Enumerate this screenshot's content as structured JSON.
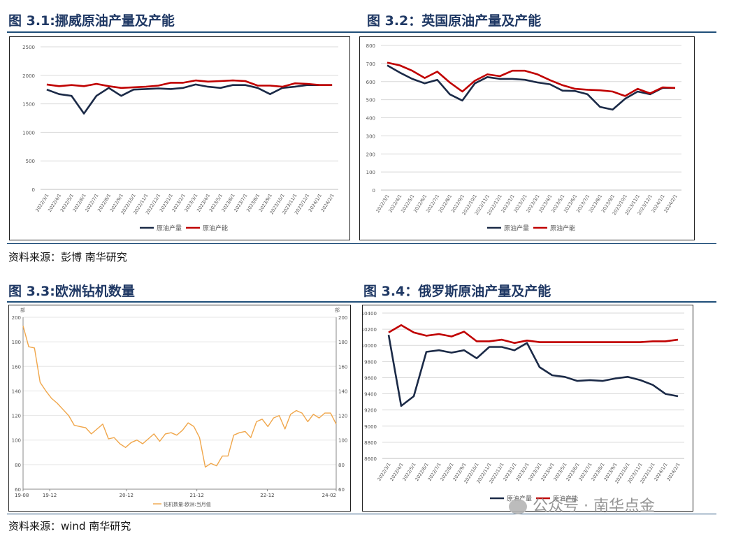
{
  "sections": {
    "s1": {
      "title": "图 3.1:挪威原油产量及产能"
    },
    "s2": {
      "title": "图 3.2：英国原油产量及产能"
    },
    "s3": {
      "title": "图 3.3:欧洲钻机数量"
    },
    "s4": {
      "title": "图 3.4：俄罗斯原油产量及产能"
    }
  },
  "source_top": "资料来源：彭博 南华研究",
  "source_bottom": "资料来源：wind 南华研究",
  "watermark": "公众号 · 南华点金",
  "colors": {
    "navy": "#1b2a47",
    "red": "#c00000",
    "orange": "#f0a64a",
    "rule": "#1f4e79"
  },
  "chart_data": [
    {
      "id": "norway",
      "type": "line",
      "title": "",
      "categories": [
        "2022/3/1",
        "2022/4/1",
        "2022/5/1",
        "2022/6/1",
        "2022/7/1",
        "2022/8/1",
        "2022/9/1",
        "2022/10/1",
        "2022/11/1",
        "2022/12/1",
        "2023/1/1",
        "2023/2/1",
        "2023/3/1",
        "2023/4/1",
        "2023/5/1",
        "2023/6/1",
        "2023/7/1",
        "2023/8/1",
        "2023/9/1",
        "2023/10/1",
        "2023/11/1",
        "2023/12/1",
        "2024/1/1",
        "2024/2/1"
      ],
      "series": [
        {
          "name": "原油产量",
          "color": "#1b2a47",
          "values": [
            1750,
            1670,
            1640,
            1330,
            1640,
            1780,
            1640,
            1750,
            1760,
            1770,
            1760,
            1780,
            1840,
            1800,
            1780,
            1830,
            1830,
            1780,
            1670,
            1780,
            1800,
            1830,
            1830,
            1830
          ]
        },
        {
          "name": "原油产能",
          "color": "#c00000",
          "values": [
            1840,
            1810,
            1830,
            1810,
            1850,
            1810,
            1780,
            1790,
            1800,
            1820,
            1870,
            1870,
            1910,
            1890,
            1900,
            1910,
            1900,
            1820,
            1820,
            1800,
            1860,
            1850,
            1830,
            1830
          ]
        }
      ],
      "ylim": [
        0,
        2500
      ],
      "yticks": [
        0,
        500,
        1000,
        1500,
        2000,
        2500
      ],
      "legend": "bottom",
      "grid": true
    },
    {
      "id": "uk",
      "type": "line",
      "title": "",
      "categories": [
        "2022/3/1",
        "2022/4/1",
        "2022/5/1",
        "2022/6/1",
        "2022/7/1",
        "2022/8/1",
        "2022/9/1",
        "2022/10/1",
        "2022/11/1",
        "2022/12/1",
        "2023/1/1",
        "2023/2/1",
        "2023/3/1",
        "2023/4/1",
        "2023/5/1",
        "2023/6/1",
        "2023/7/1",
        "2023/8/1",
        "2023/9/1",
        "2023/10/1",
        "2023/11/1",
        "2023/12/1",
        "2024/1/1",
        "2024/2/1"
      ],
      "series": [
        {
          "name": "原油产量",
          "color": "#1b2a47",
          "values": [
            690,
            650,
            615,
            590,
            610,
            530,
            495,
            590,
            625,
            615,
            615,
            610,
            595,
            585,
            550,
            548,
            530,
            460,
            445,
            505,
            545,
            530,
            565,
            565
          ]
        },
        {
          "name": "原油产能",
          "color": "#c00000",
          "values": [
            705,
            690,
            660,
            620,
            655,
            595,
            545,
            605,
            640,
            630,
            660,
            660,
            640,
            608,
            580,
            560,
            555,
            552,
            545,
            520,
            560,
            535,
            568,
            565
          ]
        }
      ],
      "ylim": [
        0,
        800
      ],
      "yticks": [
        0,
        100,
        200,
        300,
        400,
        500,
        600,
        700,
        800
      ],
      "legend": "bottom",
      "grid": true
    },
    {
      "id": "europe_rigs",
      "type": "line",
      "title": "",
      "unit_label": "部",
      "xticks": [
        "19-08",
        "19-12",
        "20-12",
        "21-12",
        "22-12",
        "24-02"
      ],
      "series": [
        {
          "name": "钻机数量:欧洲:当月值",
          "color": "#f0a64a",
          "values": [
            193,
            176,
            175,
            147,
            140,
            134,
            130,
            125,
            120,
            112,
            111,
            110,
            105,
            109,
            113,
            101,
            102,
            97,
            94,
            98,
            100,
            97,
            101,
            105,
            99,
            105,
            106,
            104,
            108,
            114,
            111,
            102,
            78,
            81,
            79,
            87,
            87,
            104,
            106,
            107,
            102,
            115,
            117,
            111,
            118,
            120,
            109,
            121,
            124,
            122,
            115,
            121,
            118,
            122,
            122,
            113
          ]
        }
      ],
      "ylim": [
        60,
        200
      ],
      "yticks": [
        60,
        80,
        100,
        120,
        140,
        160,
        180,
        200
      ],
      "legend": "bottom",
      "grid": true
    },
    {
      "id": "russia",
      "type": "line",
      "title": "",
      "categories": [
        "2022/3/1",
        "2022/4/1",
        "2022/5/1",
        "2022/6/1",
        "2022/7/1",
        "2022/8/1",
        "2022/9/1",
        "2022/10/1",
        "2022/11/1",
        "2022/12/1",
        "2023/1/1",
        "2023/2/1",
        "2023/3/1",
        "2023/4/1",
        "2023/5/1",
        "2023/6/1",
        "2023/7/1",
        "2023/8/1",
        "2023/9/1",
        "2023/10/1",
        "2023/11/1",
        "2023/12/1",
        "2024/1/1",
        "2024/2/1"
      ],
      "series": [
        {
          "name": "原油产量",
          "color": "#1b2a47",
          "values": [
            10130,
            9250,
            9370,
            9920,
            9940,
            9910,
            9940,
            9840,
            9980,
            9980,
            9940,
            10030,
            9730,
            9630,
            9610,
            9560,
            9570,
            9560,
            9590,
            9610,
            9570,
            9510,
            9400,
            9370
          ]
        },
        {
          "name": "原油产能",
          "color": "#c00000",
          "values": [
            10160,
            10250,
            10160,
            10120,
            10140,
            10110,
            10170,
            10050,
            10050,
            10070,
            10030,
            10060,
            10040,
            10040,
            10040,
            10040,
            10040,
            10040,
            10040,
            10040,
            10040,
            10050,
            10050,
            10070
          ]
        }
      ],
      "ylim": [
        8600,
        10400
      ],
      "yticks": [
        8600,
        8800,
        9000,
        9200,
        9400,
        9600,
        9800,
        10000,
        10200,
        10400
      ],
      "legend": "bottom",
      "grid": true
    }
  ]
}
